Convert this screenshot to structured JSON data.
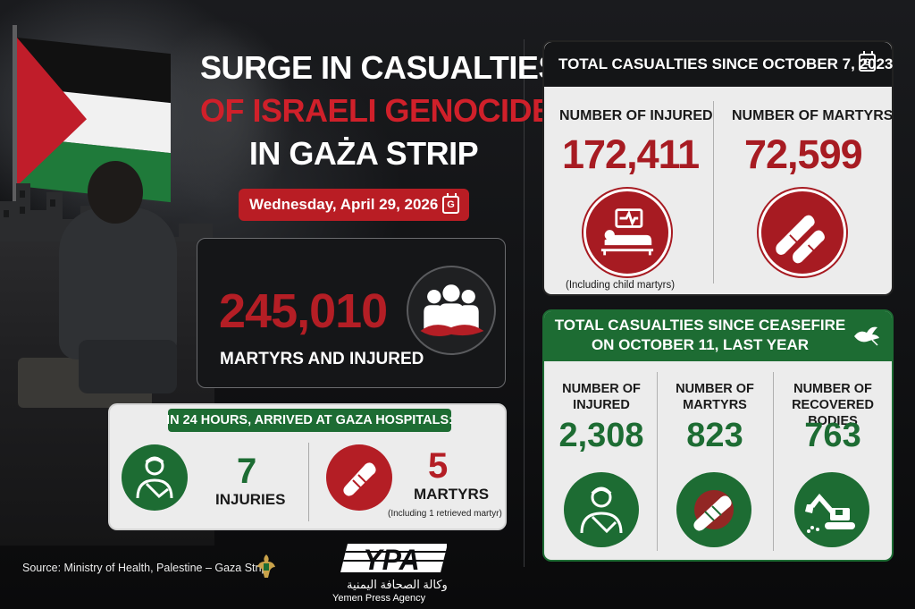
{
  "headline": {
    "line1": "SURGE IN CASUALTIES",
    "line2": "OF ISRAELI GENOCIDE",
    "line3": "IN GAŻA STRIP"
  },
  "date": {
    "text": "Wednesday, April 29, 2026",
    "calendar_letter": "G"
  },
  "total": {
    "number": "245,010",
    "label": "MARTYRS AND INJURED",
    "icon": "group-people-icon"
  },
  "last_24h": {
    "banner": "IN 24 HOURS, ARRIVED AT GAZA HOSPITALS:",
    "injuries_number": "7",
    "injuries_label": "INJURIES",
    "martyrs_number": "5",
    "martyrs_label": "MARTYRS",
    "martyrs_note": "(Including 1 retrieved martyr)"
  },
  "since_oct7": {
    "header": "TOTAL CASUALTIES SINCE OCTOBER 7, 2023",
    "calendar_letter": "G",
    "injured_label": "NUMBER OF INJURED",
    "injured_number": "172,411",
    "martyrs_label": "NUMBER OF MARTYRS",
    "martyrs_number": "72,599",
    "note": "(Including child martyrs)"
  },
  "since_ceasefire": {
    "header_line1": "TOTAL CASUALTIES SINCE CEASEFIRE",
    "header_line2": "ON OCTOBER 11, LAST YEAR",
    "injured_label_1": "NUMBER OF",
    "injured_label_2": "INJURED",
    "injured_number": "2,308",
    "martyrs_label_1": "NUMBER OF",
    "martyrs_label_2": "MARTYRS",
    "martyrs_number": "823",
    "recovered_label_1": "NUMBER OF",
    "recovered_label_2": "RECOVERED BODIES",
    "recovered_number": "763"
  },
  "footer": {
    "source": "Source: Ministry of Health, Palestine – Gaza Strip",
    "logo_text": "YPA",
    "agency_arabic": "وكالة الصحافة اليمنية",
    "agency_english": "Yemen Press Agency"
  },
  "colors": {
    "red": "#b41e25",
    "green": "#1d6c33",
    "dark": "#141517",
    "light_card": "#ececec"
  }
}
